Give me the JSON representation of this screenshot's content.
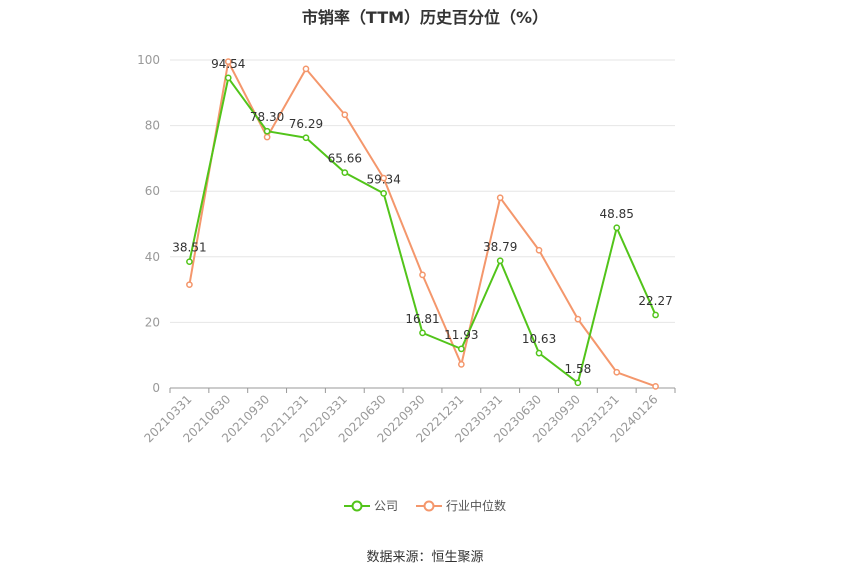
{
  "chart_data": {
    "type": "line",
    "title": "市销率（TTM）历史百分位（%）",
    "categories": [
      "20210331",
      "20210630",
      "20210930",
      "20211231",
      "20220331",
      "20220630",
      "20220930",
      "20221231",
      "20230331",
      "20230630",
      "20230930",
      "20231231",
      "20240126"
    ],
    "series": [
      {
        "name": "公司",
        "color": "#52c41a",
        "values": [
          38.51,
          94.54,
          78.3,
          76.29,
          65.66,
          59.34,
          16.81,
          11.93,
          38.79,
          10.63,
          1.58,
          48.85,
          22.27
        ],
        "labels": [
          "38.51",
          "94.54",
          "78.30",
          "76.29",
          "65.66",
          "59.34",
          "16.81",
          "11.93",
          "38.79",
          "10.63",
          "1.58",
          "48.85",
          "22.27"
        ]
      },
      {
        "name": "行业中位数",
        "color": "#f4976c",
        "values": [
          31.5,
          99.5,
          76.5,
          97.3,
          83.3,
          64.0,
          34.5,
          7.2,
          58.0,
          42.0,
          21.0,
          4.8,
          0.5
        ]
      }
    ],
    "ylim": [
      0,
      100
    ],
    "yticks": [
      "0",
      "20",
      "40",
      "60",
      "80",
      "100"
    ],
    "grid": true,
    "legend": "bottom"
  },
  "source_text": "数据来源：恒生聚源"
}
